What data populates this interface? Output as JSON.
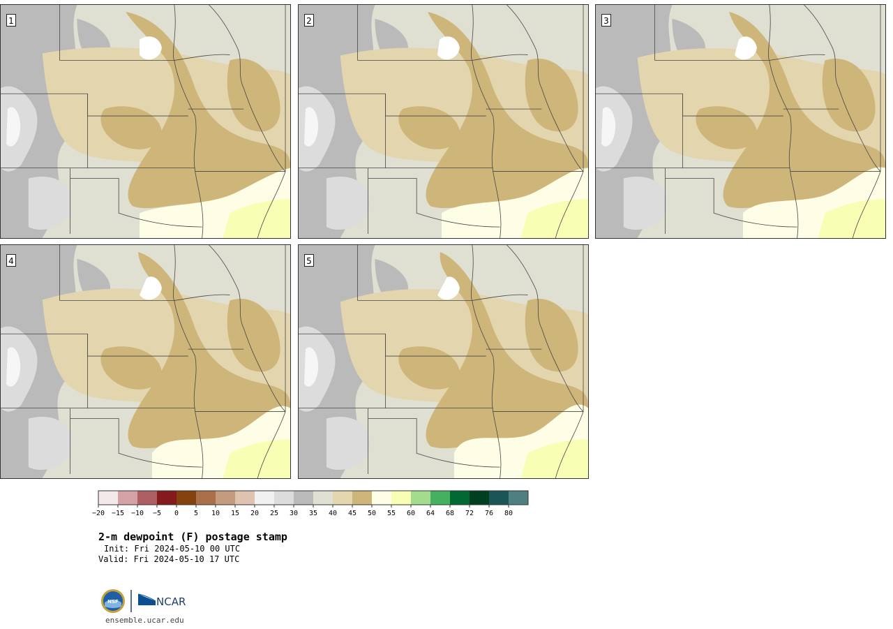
{
  "panels": [
    {
      "label": "1"
    },
    {
      "label": "2"
    },
    {
      "label": "3"
    },
    {
      "label": "4"
    },
    {
      "label": "5"
    }
  ],
  "colorbar": {
    "colors": [
      "#f4e9ea",
      "#d4a2a6",
      "#ae5f63",
      "#851a1e",
      "#84420e",
      "#a9704a",
      "#c49b7f",
      "#dfc2b0",
      "#f0f0f0",
      "#dcdcdc",
      "#bababa",
      "#dfdfd2",
      "#e3d5ae",
      "#ceb57a",
      "#fefee6",
      "#f8ffb4",
      "#a3dc8d",
      "#44b060",
      "#006a32",
      "#003f20",
      "#1b5557",
      "#4f7f80"
    ],
    "ticks": [
      "-20",
      "-15",
      "-10",
      "-5",
      "0",
      "5",
      "10",
      "15",
      "20",
      "25",
      "30",
      "35",
      "40",
      "45",
      "50",
      "55",
      "60",
      "64",
      "68",
      "72",
      "76",
      "80"
    ]
  },
  "title": "2-m dewpoint (F) postage stamp",
  "init": "Init: Fri 2024-05-10 00 UTC",
  "valid": "Valid: Fri 2024-05-10 17 UTC",
  "logos": {
    "nsf": "NSF",
    "ncar": "NCAR"
  },
  "website": "ensemble.ucar.edu"
}
